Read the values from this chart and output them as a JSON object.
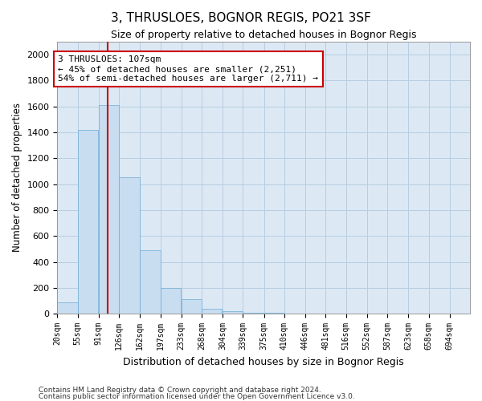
{
  "title": "3, THRUSLOES, BOGNOR REGIS, PO21 3SF",
  "subtitle": "Size of property relative to detached houses in Bognor Regis",
  "xlabel": "Distribution of detached houses by size in Bognor Regis",
  "ylabel": "Number of detached properties",
  "footnote1": "Contains HM Land Registry data © Crown copyright and database right 2024.",
  "footnote2": "Contains public sector information licensed under the Open Government Licence v3.0.",
  "bar_color": "#c9ddf0",
  "bar_edge_color": "#6aaad4",
  "grid_color": "#b8cde0",
  "bg_color": "#dce9f5",
  "vline_color": "#cc0000",
  "vline_x": 107,
  "annotation_text": "3 THRUSLOES: 107sqm\n← 45% of detached houses are smaller (2,251)\n54% of semi-detached houses are larger (2,711) →",
  "annotation_box_color": "#cc0000",
  "bins": [
    20,
    55,
    91,
    126,
    162,
    197,
    233,
    268,
    304,
    339,
    375,
    410,
    446,
    481,
    516,
    552,
    587,
    623,
    658,
    694,
    729
  ],
  "values": [
    85,
    1420,
    1610,
    1050,
    490,
    200,
    110,
    40,
    20,
    10,
    5,
    0,
    0,
    0,
    0,
    0,
    0,
    0,
    0,
    0
  ],
  "ylim": [
    0,
    2100
  ],
  "yticks": [
    0,
    200,
    400,
    600,
    800,
    1000,
    1200,
    1400,
    1600,
    1800,
    2000
  ]
}
